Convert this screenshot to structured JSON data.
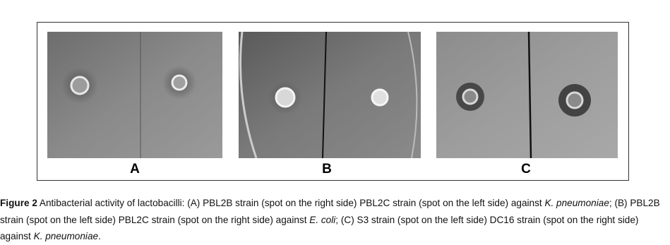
{
  "figure": {
    "panels": [
      {
        "label": "A"
      },
      {
        "label": "B"
      },
      {
        "label": "C"
      }
    ],
    "caption": {
      "label": "Figure 2",
      "segments": [
        "Antibacterial activity of lactobacilli: (A) PBL2B strain (spot on the right side) PBL2C strain (spot on the left side) against",
        "K. pneumoniae",
        "; (B) PBL2B strain (spot on the left side) PBL2C strain (spot on the right side) against",
        "E. coli",
        "; (C) S3 strain (spot on the left side) DC16 strain (spot on the right side) against",
        "K. pneumoniae",
        "."
      ]
    }
  }
}
